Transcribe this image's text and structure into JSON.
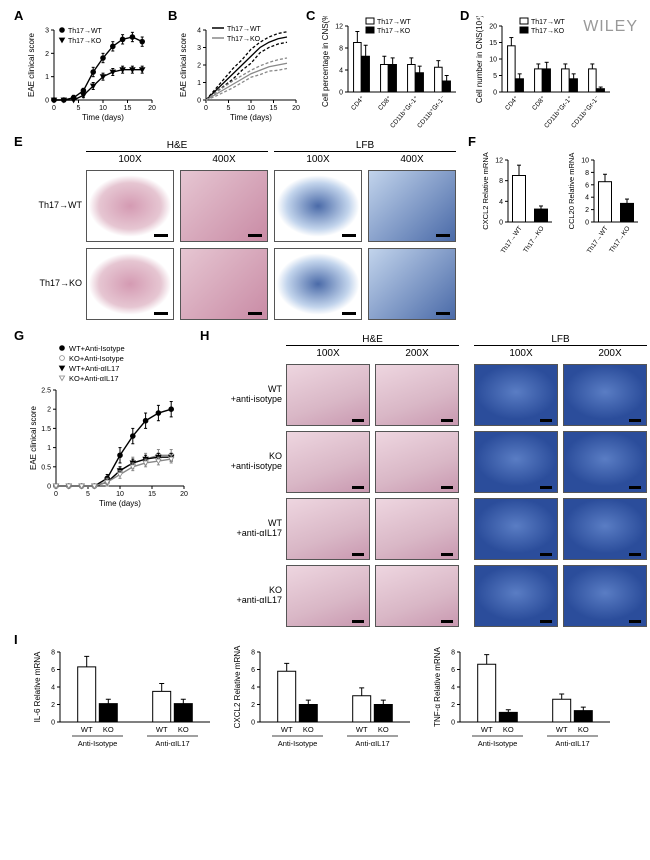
{
  "legend_AB": {
    "wt": "Th17→WT",
    "ko": "Th17→KO"
  },
  "A": {
    "xlabel": "Time (days)",
    "ylabel": "EAE clinical score",
    "xlim": [
      0,
      20
    ],
    "ylim": [
      0,
      3
    ],
    "xticks": [
      0,
      5,
      10,
      15,
      20
    ],
    "yticks": [
      0,
      1,
      2,
      3
    ],
    "wt": {
      "x": [
        0,
        2,
        4,
        6,
        8,
        10,
        12,
        14,
        16,
        18
      ],
      "y": [
        0,
        0,
        0.1,
        0.4,
        1.2,
        1.8,
        2.3,
        2.6,
        2.7,
        2.5
      ],
      "err": [
        0,
        0,
        0.1,
        0.1,
        0.2,
        0.2,
        0.2,
        0.2,
        0.2,
        0.2
      ],
      "color": "#000",
      "marker": "circle"
    },
    "ko": {
      "x": [
        0,
        2,
        4,
        6,
        8,
        10,
        12,
        14,
        16,
        18
      ],
      "y": [
        0,
        0,
        0,
        0.2,
        0.6,
        1.0,
        1.2,
        1.3,
        1.3,
        1.3
      ],
      "err": [
        0,
        0,
        0,
        0.1,
        0.15,
        0.15,
        0.15,
        0.15,
        0.15,
        0.15
      ],
      "color": "#000",
      "marker": "triangle-down"
    }
  },
  "B": {
    "xlabel": "Time (days)",
    "ylabel": "EAE clinical score",
    "xlim": [
      0,
      20
    ],
    "ylim": [
      0,
      4
    ],
    "xticks": [
      0,
      5,
      10,
      15,
      20
    ],
    "yticks": [
      0,
      1,
      2,
      3,
      4
    ],
    "wt_mean": [
      0,
      0.5,
      1.0,
      1.5,
      2.0,
      2.5,
      3.0,
      3.3,
      3.5,
      3.6
    ],
    "wt_band_hi": [
      0,
      0.6,
      1.2,
      1.8,
      2.3,
      2.9,
      3.3,
      3.6,
      3.8,
      3.9
    ],
    "wt_band_lo": [
      0,
      0.4,
      0.8,
      1.2,
      1.7,
      2.1,
      2.7,
      3.0,
      3.2,
      3.3
    ],
    "ko_mean": [
      0,
      0.3,
      0.6,
      0.9,
      1.2,
      1.5,
      1.7,
      1.9,
      2.0,
      2.1
    ],
    "ko_band_hi": [
      0,
      0.4,
      0.75,
      1.1,
      1.4,
      1.7,
      1.95,
      2.15,
      2.3,
      2.4
    ],
    "ko_band_lo": [
      0,
      0.2,
      0.45,
      0.7,
      1.0,
      1.3,
      1.45,
      1.65,
      1.7,
      1.8
    ],
    "x": [
      0,
      2,
      4,
      6,
      8,
      10,
      12,
      14,
      16,
      18
    ],
    "wt_color": "#000",
    "ko_color": "#888"
  },
  "C": {
    "ylabel": "Cell percentage in CNS(%)",
    "ylim": [
      0,
      12
    ],
    "yticks": [
      0,
      4,
      8,
      12
    ],
    "cats": [
      "CD4⁺",
      "CD8⁺",
      "CD11b⁺Gr-1⁺",
      "CD11b⁺Gr-1⁻"
    ],
    "wt": [
      9,
      5,
      5,
      4.5
    ],
    "ko": [
      6.5,
      5,
      3.5,
      2
    ],
    "wte": [
      2,
      1.5,
      1.2,
      1.2
    ],
    "koe": [
      2,
      1.2,
      1.2,
      1
    ]
  },
  "D": {
    "ylabel": "Cell number in CNS(10⁴)",
    "ylim": [
      0,
      20
    ],
    "yticks": [
      0,
      5,
      10,
      15,
      20
    ],
    "cats": [
      "CD4⁺",
      "CD8⁺",
      "CD11b⁺Gr-1⁺",
      "CD11b⁺Gr-1⁻"
    ],
    "wt": [
      14,
      7,
      7,
      7
    ],
    "ko": [
      4,
      7,
      4,
      1
    ],
    "wte": [
      2.5,
      1.5,
      1.5,
      1.5
    ],
    "koe": [
      1.5,
      2,
      1.5,
      0.5
    ]
  },
  "E": {
    "stain1": "H&E",
    "stain2": "LFB",
    "m100": "100X",
    "m400": "400X",
    "rows": [
      "Th17→WT",
      "Th17→KO"
    ],
    "he_color": "#e6c6d2",
    "lfb_color": "#c2d4ec",
    "lfb_dark": "#4a6aa8"
  },
  "F": {
    "y1": "CXCL2 Relative mRNA",
    "y2": "CCL20 Relative mRNA",
    "cats": [
      "Th17→WT",
      "Th17→KO"
    ],
    "c1": {
      "ylim": [
        0,
        12
      ],
      "yticks": [
        0,
        4,
        8,
        12
      ],
      "v": [
        9,
        2.5
      ],
      "e": [
        2,
        0.6
      ]
    },
    "c2": {
      "ylim": [
        0,
        10
      ],
      "yticks": [
        0,
        2,
        4,
        6,
        8,
        10
      ],
      "v": [
        6.5,
        3
      ],
      "e": [
        1.2,
        0.7
      ]
    }
  },
  "G": {
    "xlabel": "Time (days)",
    "ylabel": "EAE clinical score",
    "xlim": [
      0,
      20
    ],
    "ylim": [
      0,
      2.5
    ],
    "xticks": [
      0,
      5,
      10,
      15,
      20
    ],
    "yticks": [
      0,
      0.5,
      1.0,
      1.5,
      2.0,
      2.5
    ],
    "legend": [
      "WT+Anti-Isotype",
      "KO+Anti-Isotype",
      "WT+Anti-αIL17",
      "KO+Anti-αIL17"
    ],
    "x": [
      0,
      2,
      4,
      6,
      8,
      10,
      12,
      14,
      16,
      18
    ],
    "s": [
      {
        "y": [
          0,
          0,
          0,
          0,
          0.2,
          0.8,
          1.3,
          1.7,
          1.9,
          2.0
        ],
        "e": [
          0,
          0,
          0,
          0,
          0.1,
          0.2,
          0.2,
          0.2,
          0.2,
          0.2
        ],
        "color": "#000",
        "marker": "circle",
        "fill": "#000"
      },
      {
        "y": [
          0,
          0,
          0,
          0,
          0.1,
          0.4,
          0.6,
          0.7,
          0.8,
          0.8
        ],
        "e": [
          0,
          0,
          0,
          0,
          0.1,
          0.1,
          0.15,
          0.15,
          0.15,
          0.15
        ],
        "color": "#888",
        "marker": "circle",
        "fill": "#fff"
      },
      {
        "y": [
          0,
          0,
          0,
          0,
          0.1,
          0.4,
          0.6,
          0.7,
          0.75,
          0.75
        ],
        "e": [
          0,
          0,
          0,
          0,
          0.1,
          0.1,
          0.1,
          0.1,
          0.1,
          0.1
        ],
        "color": "#000",
        "marker": "triangle-down",
        "fill": "#000"
      },
      {
        "y": [
          0,
          0,
          0,
          0,
          0.1,
          0.3,
          0.5,
          0.6,
          0.65,
          0.7
        ],
        "e": [
          0,
          0,
          0,
          0,
          0.1,
          0.1,
          0.1,
          0.1,
          0.1,
          0.1
        ],
        "color": "#888",
        "marker": "triangle-down",
        "fill": "#fff"
      }
    ]
  },
  "H": {
    "stain1": "H&E",
    "stain2": "LFB",
    "m100": "100X",
    "m200": "200X",
    "rows": [
      "WT\n+anti-isotype",
      "KO\n+anti-isotype",
      "WT\n+anti-αIL17",
      "KO\n+anti-αIL17"
    ],
    "he_color": "#d9b7c6",
    "lfb_color": "#2b4d9b"
  },
  "I": {
    "blocks": [
      "Anti-Isotype",
      "Anti-αIL17"
    ],
    "subcats": [
      "WT",
      "KO"
    ],
    "charts": [
      {
        "yl": "IL-6 Relative mRNA",
        "ylim": [
          0,
          8
        ],
        "yticks": [
          0,
          2,
          4,
          6,
          8
        ],
        "v": [
          6.3,
          2.1,
          3.5,
          2.1
        ],
        "e": [
          1.2,
          0.5,
          0.9,
          0.5
        ]
      },
      {
        "yl": "CXCL2 Relative mRNA",
        "ylim": [
          0,
          8
        ],
        "yticks": [
          0,
          2,
          4,
          6,
          8
        ],
        "v": [
          5.8,
          2.0,
          3.0,
          2.0
        ],
        "e": [
          0.9,
          0.5,
          0.9,
          0.5
        ]
      },
      {
        "yl": "TNF-α Relative mRNA",
        "ylim": [
          0,
          8
        ],
        "yticks": [
          0,
          2,
          4,
          6,
          8
        ],
        "v": [
          6.6,
          1.1,
          2.6,
          1.3
        ],
        "e": [
          1.1,
          0.3,
          0.6,
          0.4
        ]
      }
    ]
  }
}
